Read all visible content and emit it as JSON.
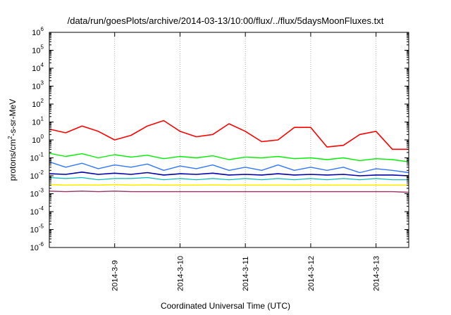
{
  "chart_data": {
    "type": "line",
    "title": "/data/run/goesPlots/archive/2014-03-13/10:00/flux/../flux/5daysMoonFluxes.txt",
    "xlabel": "Coordinated Universal Time (UTC)",
    "ylabel_parts": {
      "prefix": "protons/cm",
      "sup": "2",
      "suffix": "-s-sr-MeV"
    },
    "x_unit": "days",
    "xlim": [
      "2014-03-08 00:00",
      "2014-03-13 12:00"
    ],
    "x_ticks": [
      {
        "label": "2014-3-9",
        "at": "2014-03-09 00:00"
      },
      {
        "label": "2014-3-10",
        "at": "2014-03-10 00:00"
      },
      {
        "label": "2014-3-11",
        "at": "2014-03-11 00:00"
      },
      {
        "label": "2014-3-12",
        "at": "2014-03-12 00:00"
      },
      {
        "label": "2014-3-13",
        "at": "2014-03-13 00:00"
      }
    ],
    "y_scale": "log",
    "ylim_exponents": [
      -6,
      6
    ],
    "y_ticks": [
      {
        "base": "10",
        "exp": "-6"
      },
      {
        "base": "10",
        "exp": "-5"
      },
      {
        "base": "10",
        "exp": "-4"
      },
      {
        "base": "10",
        "exp": "-3"
      },
      {
        "base": "10",
        "exp": "-2"
      },
      {
        "base": "10",
        "exp": "-1"
      },
      {
        "base": "10",
        "exp": "0"
      },
      {
        "base": "10",
        "exp": "1"
      },
      {
        "base": "10",
        "exp": "2"
      },
      {
        "base": "10",
        "exp": "3"
      },
      {
        "base": "10",
        "exp": "4"
      },
      {
        "base": "10",
        "exp": "5"
      },
      {
        "base": "10",
        "exp": "6"
      }
    ],
    "grid": "x-only, dotted",
    "legend": "none",
    "x": [
      "2014-03-08 00:00",
      "2014-03-08 06:00",
      "2014-03-08 12:00",
      "2014-03-08 18:00",
      "2014-03-09 00:00",
      "2014-03-09 06:00",
      "2014-03-09 12:00",
      "2014-03-09 18:00",
      "2014-03-10 00:00",
      "2014-03-10 06:00",
      "2014-03-10 12:00",
      "2014-03-10 18:00",
      "2014-03-11 00:00",
      "2014-03-11 06:00",
      "2014-03-11 12:00",
      "2014-03-11 18:00",
      "2014-03-12 00:00",
      "2014-03-12 06:00",
      "2014-03-12 12:00",
      "2014-03-12 18:00",
      "2014-03-13 00:00",
      "2014-03-13 06:00",
      "2014-03-13 12:00"
    ],
    "series": [
      {
        "color": "#ff0000",
        "width": 1.6,
        "values": [
          4,
          2.5,
          6,
          3,
          1,
          1.8,
          6,
          12,
          3,
          1.5,
          2,
          8,
          3,
          0.8,
          1,
          5,
          5,
          0.4,
          0.5,
          2,
          3,
          0.3,
          0.3
        ]
      },
      {
        "color": "#00ee00",
        "width": 1.4,
        "values": [
          0.18,
          0.12,
          0.17,
          0.1,
          0.15,
          0.11,
          0.14,
          0.09,
          0.12,
          0.1,
          0.13,
          0.08,
          0.11,
          0.1,
          0.12,
          0.09,
          0.1,
          0.08,
          0.1,
          0.07,
          0.09,
          0.08,
          0.06
        ]
      },
      {
        "color": "#3377ff",
        "width": 1.4,
        "values": [
          0.06,
          0.03,
          0.05,
          0.025,
          0.04,
          0.03,
          0.045,
          0.02,
          0.035,
          0.025,
          0.04,
          0.02,
          0.03,
          0.02,
          0.04,
          0.02,
          0.03,
          0.02,
          0.03,
          0.015,
          0.025,
          0.02,
          0.015
        ]
      },
      {
        "color": "#00bbbb",
        "width": 1.2,
        "values": [
          0.008,
          0.007,
          0.008,
          0.006,
          0.007,
          0.007,
          0.008,
          0.006,
          0.007,
          0.006,
          0.007,
          0.006,
          0.007,
          0.006,
          0.007,
          0.006,
          0.007,
          0.006,
          0.007,
          0.006,
          0.007,
          0.006,
          0.006
        ]
      },
      {
        "color": "#0000aa",
        "width": 1.6,
        "values": [
          0.013,
          0.012,
          0.016,
          0.012,
          0.014,
          0.012,
          0.015,
          0.011,
          0.013,
          0.012,
          0.014,
          0.011,
          0.012,
          0.011,
          0.013,
          0.011,
          0.012,
          0.011,
          0.012,
          0.01,
          0.011,
          0.011,
          0.01
        ]
      },
      {
        "color": "#ffee00",
        "width": 1.6,
        "values": [
          0.0032,
          0.003,
          0.0031,
          0.003,
          0.0032,
          0.003,
          0.0031,
          0.003,
          0.003,
          0.003,
          0.0031,
          0.003,
          0.003,
          0.003,
          0.003,
          0.003,
          0.003,
          0.003,
          0.003,
          0.003,
          0.003,
          0.003,
          0.003
        ]
      },
      {
        "color": "#993366",
        "width": 1.4,
        "values": [
          0.0014,
          0.0013,
          0.0014,
          0.0013,
          0.0014,
          0.0013,
          0.0013,
          0.0013,
          0.0013,
          0.0013,
          0.0013,
          0.0013,
          0.0013,
          0.0013,
          0.0013,
          0.0013,
          0.0013,
          0.0013,
          0.0013,
          0.0013,
          0.0013,
          0.0013,
          0.0012
        ]
      }
    ]
  }
}
